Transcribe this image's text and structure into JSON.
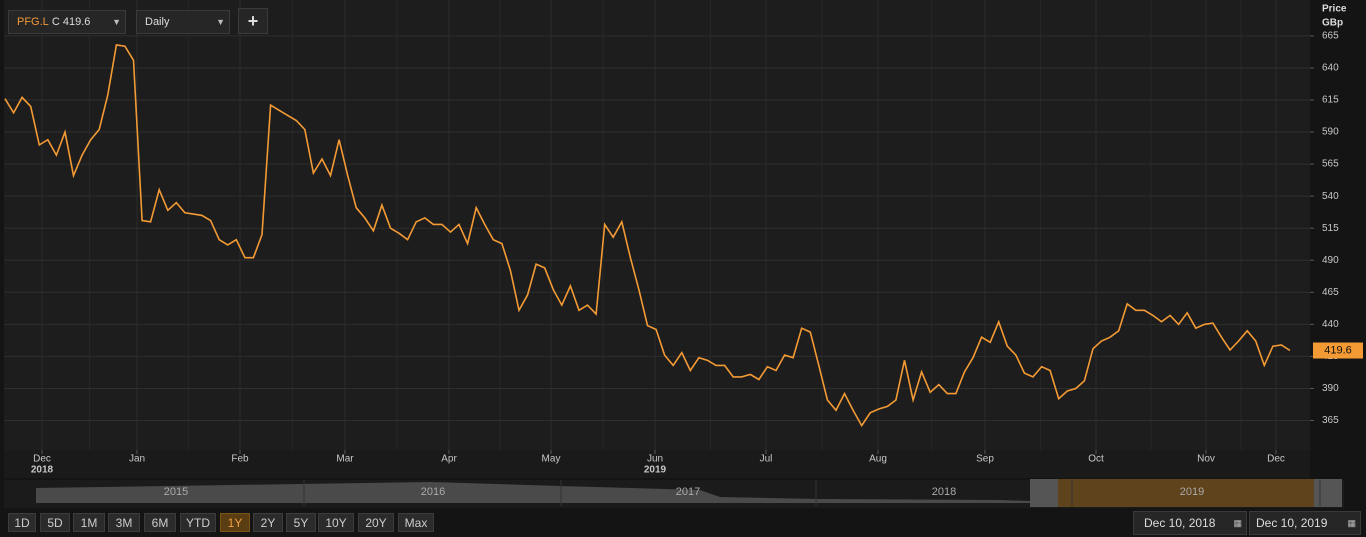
{
  "header": {
    "symbol": "PFG.L",
    "close_prefix": "C",
    "interval": "Daily",
    "add": "+"
  },
  "chart_data": {
    "type": "line",
    "axis_title": [
      "Price",
      "GBp"
    ],
    "x_labels": [
      {
        "month": "Dec",
        "year": "2018"
      },
      {
        "month": "Jan"
      },
      {
        "month": "Feb"
      },
      {
        "month": "Mar"
      },
      {
        "month": "Apr"
      },
      {
        "month": "May"
      },
      {
        "month": "Jun",
        "year": "2019"
      },
      {
        "month": "Jul"
      },
      {
        "month": "Aug"
      },
      {
        "month": "Sep"
      },
      {
        "month": "Oct"
      },
      {
        "month": "Nov"
      },
      {
        "month": "Dec"
      }
    ],
    "ylim": [
      342,
      693
    ],
    "yticks": [
      365,
      390,
      415,
      440,
      465,
      490,
      515,
      540,
      565,
      590,
      615,
      640,
      665
    ],
    "grid": true,
    "series": [
      {
        "name": "PFG.L",
        "color": "#f39a35",
        "values": [
          616,
          605,
          617,
          610,
          580,
          584,
          572,
          590,
          556,
          572,
          584,
          592,
          619,
          658,
          657,
          646,
          521,
          520,
          545,
          529,
          535,
          527,
          526,
          525,
          521,
          506,
          502,
          506,
          492,
          492,
          510,
          611,
          607,
          603,
          599,
          592,
          558,
          569,
          556,
          584,
          556,
          531,
          523,
          513,
          533,
          515,
          511,
          506,
          520,
          523,
          518,
          518,
          512,
          518,
          503,
          531,
          518,
          506,
          503,
          482,
          451,
          463,
          487,
          484,
          467,
          455,
          470,
          451,
          455,
          448,
          518,
          508,
          520,
          492,
          467,
          439,
          436,
          416,
          408,
          418,
          404,
          414,
          412,
          408,
          408,
          399,
          399,
          401,
          397,
          407,
          404,
          416,
          414,
          437,
          434,
          408,
          381,
          373,
          386,
          373,
          361,
          371,
          374,
          376,
          381,
          412,
          381,
          403,
          387,
          393,
          386,
          386,
          403,
          414,
          430,
          426,
          442,
          423,
          416,
          402,
          399,
          407,
          404,
          382,
          388,
          390,
          396,
          421,
          427,
          430,
          435,
          456,
          451,
          451,
          447,
          442,
          447,
          440,
          449,
          437,
          440,
          441,
          430,
          420,
          427,
          435,
          427,
          408,
          423,
          424,
          419.6
        ]
      }
    ]
  },
  "navigator": {
    "years": [
      "2015",
      "2016",
      "2017",
      "2018",
      "2019"
    ]
  },
  "ranges": [
    "1D",
    "5D",
    "1M",
    "3M",
    "6M",
    "YTD",
    "1Y",
    "2Y",
    "5Y",
    "10Y",
    "20Y",
    "Max"
  ],
  "active_range": "1Y",
  "date_from": "Dec 10, 2018",
  "date_to": "Dec 10, 2019"
}
